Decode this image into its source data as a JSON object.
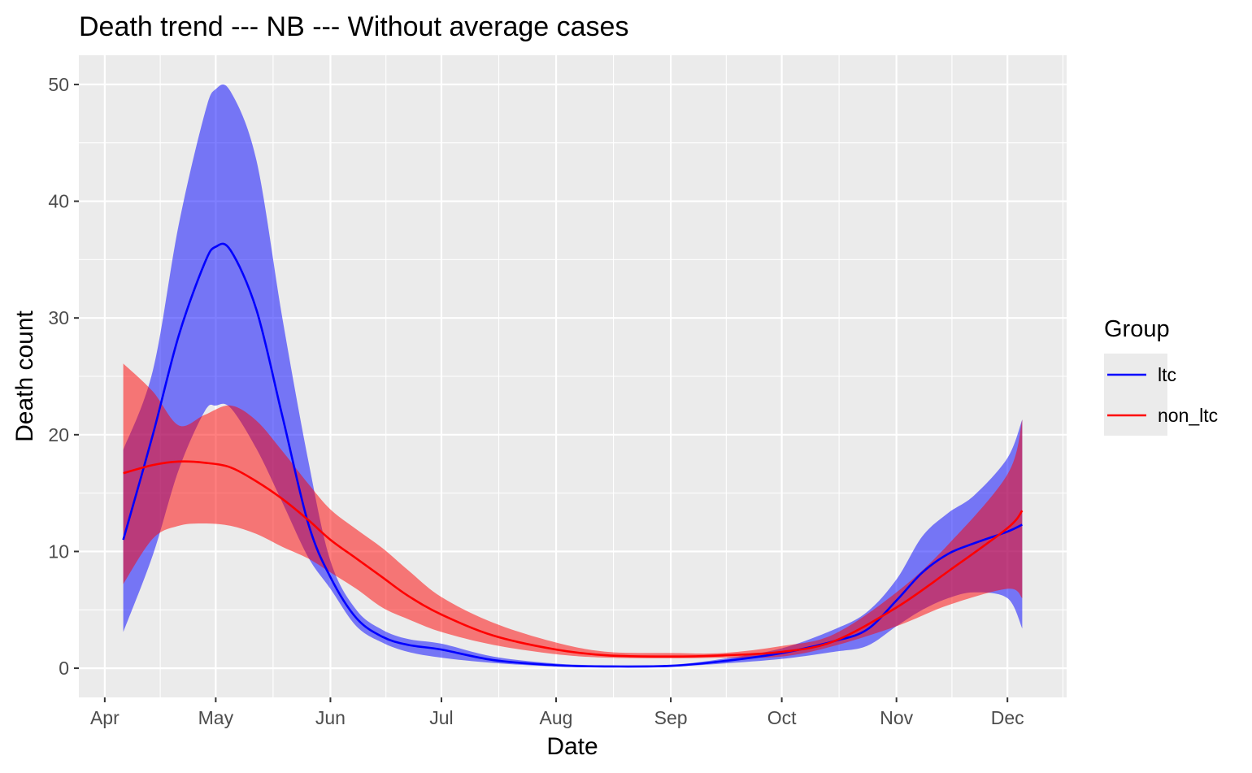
{
  "chart_data": {
    "type": "line",
    "title": "Death trend --- NB --- Without average cases",
    "xlabel": "Date",
    "ylabel": "Death count",
    "x_ticks": [
      "Apr",
      "May",
      "Jun",
      "Jul",
      "Aug",
      "Sep",
      "Oct",
      "Nov",
      "Dec"
    ],
    "x_tick_dates": [
      "2020-04-01",
      "2020-05-01",
      "2020-06-01",
      "2020-07-01",
      "2020-08-01",
      "2020-09-01",
      "2020-10-01",
      "2020-11-01",
      "2020-12-01"
    ],
    "y_ticks": [
      0,
      10,
      20,
      30,
      40,
      50
    ],
    "xlim": [
      "2020-03-25",
      "2020-12-17"
    ],
    "ylim": [
      -2.5,
      52.5
    ],
    "grid": true,
    "legend": {
      "title": "Group",
      "position": "right"
    },
    "series": [
      {
        "name": "ltc",
        "color": "#0000ff",
        "x": [
          "2020-04-06",
          "2020-04-14",
          "2020-04-21",
          "2020-04-28",
          "2020-05-01",
          "2020-05-05",
          "2020-05-12",
          "2020-05-19",
          "2020-05-26",
          "2020-06-01",
          "2020-06-08",
          "2020-06-15",
          "2020-06-22",
          "2020-07-01",
          "2020-07-15",
          "2020-08-01",
          "2020-08-15",
          "2020-09-01",
          "2020-09-15",
          "2020-10-01",
          "2020-10-15",
          "2020-10-24",
          "2020-11-01",
          "2020-11-08",
          "2020-11-15",
          "2020-11-22",
          "2020-12-01",
          "2020-12-05"
        ],
        "y": [
          11,
          20,
          28.5,
          34.7,
          36.1,
          35.8,
          30.7,
          21.6,
          12.4,
          7.8,
          4.3,
          2.7,
          2.0,
          1.6,
          0.7,
          0.25,
          0.15,
          0.2,
          0.6,
          1.3,
          2.3,
          3.3,
          5.8,
          8.2,
          9.8,
          10.7,
          11.7,
          12.3
        ],
        "lower": [
          3.1,
          9.7,
          17,
          22,
          22.5,
          22.3,
          18.8,
          14.2,
          9.5,
          6.8,
          3.6,
          2.2,
          1.4,
          0.9,
          0.45,
          0.15,
          0.1,
          0.15,
          0.4,
          0.8,
          1.4,
          1.9,
          3.6,
          5.0,
          6.0,
          6.5,
          6.0,
          3.4
        ],
        "upper": [
          18.7,
          25.5,
          38,
          47.5,
          49.6,
          49.4,
          43.5,
          30,
          17.8,
          9.2,
          5.0,
          3.3,
          2.5,
          2.1,
          1.0,
          0.4,
          0.25,
          0.3,
          0.8,
          1.7,
          3.3,
          4.8,
          7.6,
          11.3,
          13.3,
          14.8,
          18.0,
          21.3
        ]
      },
      {
        "name": "non_ltc",
        "color": "#ff0000",
        "x": [
          "2020-04-06",
          "2020-04-14",
          "2020-04-21",
          "2020-04-28",
          "2020-05-05",
          "2020-05-12",
          "2020-05-19",
          "2020-05-26",
          "2020-06-01",
          "2020-06-08",
          "2020-06-15",
          "2020-06-22",
          "2020-07-01",
          "2020-07-15",
          "2020-08-01",
          "2020-08-15",
          "2020-09-01",
          "2020-09-15",
          "2020-10-01",
          "2020-10-15",
          "2020-11-01",
          "2020-11-15",
          "2020-12-01",
          "2020-12-05"
        ],
        "y": [
          16.7,
          17.4,
          17.7,
          17.6,
          17.2,
          16,
          14.5,
          12.7,
          11.0,
          9.4,
          7.8,
          6.2,
          4.6,
          2.8,
          1.6,
          1.1,
          1.0,
          1.1,
          1.4,
          2.3,
          5.2,
          8.3,
          12.0,
          13.5
        ],
        "lower": [
          7.2,
          11.1,
          12.2,
          12.4,
          12.2,
          11.5,
          10.4,
          9.4,
          8.2,
          6.8,
          5.2,
          4.2,
          3.1,
          2.0,
          1.2,
          0.9,
          0.85,
          0.9,
          1.0,
          1.9,
          3.6,
          5.4,
          6.8,
          6.0
        ],
        "upper": [
          26.1,
          23.7,
          20.8,
          21.7,
          22.5,
          21.2,
          18.6,
          15.8,
          13.6,
          11.9,
          10.3,
          8.4,
          6.1,
          3.9,
          2.2,
          1.4,
          1.3,
          1.3,
          1.9,
          2.9,
          6.5,
          10.6,
          16.6,
          21.3
        ]
      }
    ]
  }
}
